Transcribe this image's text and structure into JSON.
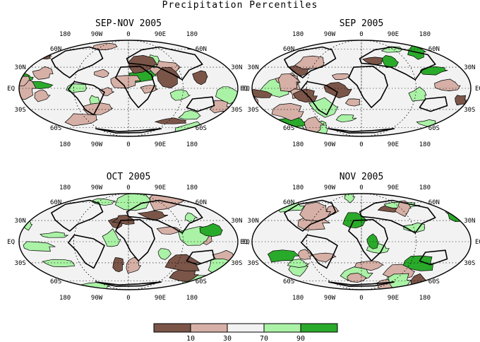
{
  "title": "Precipitation Percentiles",
  "panels": [
    {
      "title": "SEP-NOV 2005"
    },
    {
      "title": "SEP 2005"
    },
    {
      "title": "OCT 2005"
    },
    {
      "title": "NOV 2005"
    }
  ],
  "lon_labels": [
    "180",
    "90W",
    "0",
    "90E",
    "180"
  ],
  "lat_labels": [
    "60N",
    "30N",
    "EQ",
    "30S",
    "60S"
  ],
  "colorbar": {
    "colors": [
      "#7a5548",
      "#d6b0a6",
      "#f2f2f2",
      "#aaf2a6",
      "#2aaa2a"
    ],
    "labels": [
      "10",
      "30",
      "70",
      "90"
    ]
  }
}
